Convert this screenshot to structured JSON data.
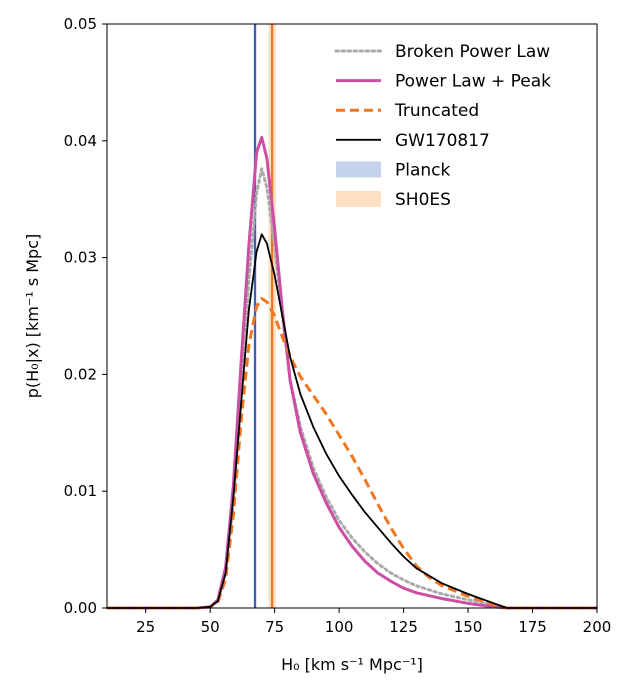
{
  "chart_data": {
    "type": "line",
    "xlabel": "H₀ [km s⁻¹ Mpc⁻¹]",
    "ylabel": "p(H₀|x) [km⁻¹ s Mpc]",
    "xlim": [
      10,
      200
    ],
    "ylim": [
      0,
      0.05
    ],
    "xticks": [
      25,
      50,
      75,
      100,
      125,
      150,
      175,
      200
    ],
    "yticks": [
      0.0,
      0.01,
      0.02,
      0.03,
      0.04,
      0.05
    ],
    "xtick_labels": [
      "25",
      "50",
      "75",
      "100",
      "125",
      "150",
      "175",
      "200"
    ],
    "ytick_labels": [
      "0.00",
      "0.01",
      "0.02",
      "0.03",
      "0.04",
      "0.05"
    ],
    "grid": false,
    "legend_position": "top-right",
    "series": [
      {
        "name": "Broken Power Law",
        "color": "#aaaaaa",
        "dash": "dotted",
        "points": [
          [
            10,
            0
          ],
          [
            45,
            0
          ],
          [
            50,
            0.0001
          ],
          [
            53,
            0.0006
          ],
          [
            56,
            0.003
          ],
          [
            59,
            0.009
          ],
          [
            62,
            0.018
          ],
          [
            65,
            0.028
          ],
          [
            68,
            0.0355
          ],
          [
            70,
            0.0376
          ],
          [
            72,
            0.036
          ],
          [
            75,
            0.031
          ],
          [
            78,
            0.025
          ],
          [
            81,
            0.0195
          ],
          [
            85,
            0.0155
          ],
          [
            90,
            0.012
          ],
          [
            95,
            0.0095
          ],
          [
            100,
            0.0075
          ],
          [
            105,
            0.006
          ],
          [
            110,
            0.0048
          ],
          [
            115,
            0.0038
          ],
          [
            120,
            0.003
          ],
          [
            125,
            0.0024
          ],
          [
            130,
            0.0019
          ],
          [
            140,
            0.0012
          ],
          [
            150,
            0.0007
          ],
          [
            160,
            0.0003
          ],
          [
            165,
            0.0
          ],
          [
            200,
            0
          ]
        ]
      },
      {
        "name": "Power Law + Peak",
        "color": "#cc4fa3",
        "dash": "solid",
        "points": [
          [
            10,
            0
          ],
          [
            45,
            0
          ],
          [
            50,
            0.0001
          ],
          [
            53,
            0.0007
          ],
          [
            56,
            0.0035
          ],
          [
            59,
            0.0105
          ],
          [
            62,
            0.021
          ],
          [
            65,
            0.031
          ],
          [
            68,
            0.039
          ],
          [
            70,
            0.0403
          ],
          [
            72,
            0.0385
          ],
          [
            75,
            0.0325
          ],
          [
            78,
            0.0255
          ],
          [
            81,
            0.0195
          ],
          [
            85,
            0.015
          ],
          [
            90,
            0.0115
          ],
          [
            95,
            0.009
          ],
          [
            100,
            0.0069
          ],
          [
            105,
            0.0053
          ],
          [
            110,
            0.004
          ],
          [
            115,
            0.003
          ],
          [
            120,
            0.0023
          ],
          [
            125,
            0.0017
          ],
          [
            130,
            0.0013
          ],
          [
            140,
            0.0008
          ],
          [
            150,
            0.0004
          ],
          [
            160,
            0.0001
          ],
          [
            165,
            0.0
          ],
          [
            200,
            0
          ]
        ]
      },
      {
        "name": "Truncated",
        "color": "#ee7722",
        "dash": "dashed",
        "points": [
          [
            10,
            0
          ],
          [
            45,
            0
          ],
          [
            50,
            0.0001
          ],
          [
            53,
            0.0005
          ],
          [
            56,
            0.0025
          ],
          [
            59,
            0.008
          ],
          [
            62,
            0.016
          ],
          [
            65,
            0.0225
          ],
          [
            68,
            0.0258
          ],
          [
            70,
            0.0265
          ],
          [
            72,
            0.0262
          ],
          [
            75,
            0.025
          ],
          [
            78,
            0.0232
          ],
          [
            82,
            0.0211
          ],
          [
            85,
            0.0198
          ],
          [
            90,
            0.0182
          ],
          [
            95,
            0.0166
          ],
          [
            100,
            0.0148
          ],
          [
            105,
            0.013
          ],
          [
            110,
            0.011
          ],
          [
            115,
            0.0089
          ],
          [
            120,
            0.0069
          ],
          [
            125,
            0.0051
          ],
          [
            130,
            0.0036
          ],
          [
            135,
            0.0026
          ],
          [
            140,
            0.0019
          ],
          [
            150,
            0.001
          ],
          [
            160,
            0.0003
          ],
          [
            165,
            0.0
          ],
          [
            200,
            0
          ]
        ]
      },
      {
        "name": "GW170817",
        "color": "#000000",
        "dash": "solid",
        "points": [
          [
            10,
            0
          ],
          [
            45,
            0
          ],
          [
            50,
            0.0001
          ],
          [
            53,
            0.0006
          ],
          [
            56,
            0.003
          ],
          [
            59,
            0.0095
          ],
          [
            62,
            0.0175
          ],
          [
            65,
            0.0255
          ],
          [
            68,
            0.0305
          ],
          [
            70,
            0.032
          ],
          [
            72,
            0.0312
          ],
          [
            75,
            0.0285
          ],
          [
            78,
            0.025
          ],
          [
            81,
            0.0215
          ],
          [
            85,
            0.0183
          ],
          [
            90,
            0.0155
          ],
          [
            95,
            0.0132
          ],
          [
            100,
            0.0113
          ],
          [
            105,
            0.0097
          ],
          [
            110,
            0.0082
          ],
          [
            115,
            0.0069
          ],
          [
            120,
            0.0056
          ],
          [
            125,
            0.0044
          ],
          [
            130,
            0.0034
          ],
          [
            140,
            0.0021
          ],
          [
            150,
            0.0012
          ],
          [
            160,
            0.0004
          ],
          [
            165,
            0.0
          ],
          [
            200,
            0
          ]
        ]
      }
    ],
    "bands": [
      {
        "name": "Planck",
        "color": "#3d5fb0",
        "fill": "#c5d2ee",
        "center": 67.4,
        "low": 66.9,
        "high": 67.9
      },
      {
        "name": "SH0ES",
        "color": "#ee7722",
        "fill": "#fde0c4",
        "center": 74.03,
        "low": 72.6,
        "high": 75.5
      }
    ],
    "legend": [
      {
        "label": "Broken Power Law",
        "kind": "line",
        "color": "#aaaaaa",
        "dash": "dotted"
      },
      {
        "label": "Power Law + Peak",
        "kind": "line",
        "color": "#cc4fa3",
        "dash": "solid"
      },
      {
        "label": "Truncated",
        "kind": "line",
        "color": "#ee7722",
        "dash": "dashed"
      },
      {
        "label": "GW170817",
        "kind": "line",
        "color": "#000000",
        "dash": "solid"
      },
      {
        "label": "Planck",
        "kind": "patch",
        "color": "#c5d2ee"
      },
      {
        "label": "SH0ES",
        "kind": "patch",
        "color": "#fde0c4"
      }
    ]
  }
}
